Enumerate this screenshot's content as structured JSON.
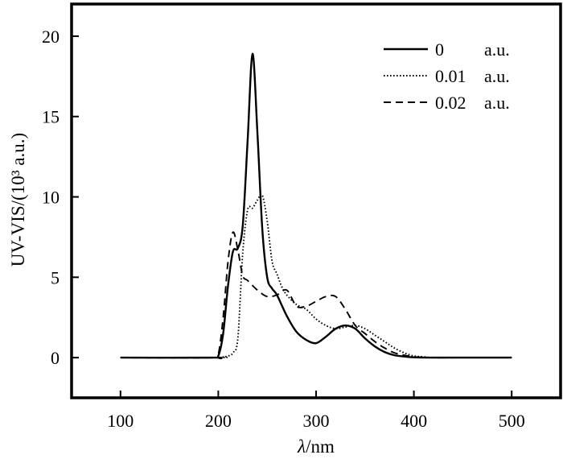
{
  "chart_data": {
    "type": "line",
    "xlabel": "λ/nm",
    "ylabel": "UV-VIS/(10³ a.u.)",
    "xlim": [
      50,
      550
    ],
    "ylim": [
      -2.5,
      22
    ],
    "xticks": [
      100,
      200,
      300,
      400,
      500
    ],
    "yticks": [
      0,
      5,
      10,
      15,
      20
    ],
    "grid": false,
    "legend_position": "top-right",
    "series": [
      {
        "name": "0",
        "unit": "a.u.",
        "style": "solid",
        "x": [
          100,
          195,
          200,
          205,
          210,
          215,
          220,
          225,
          230,
          235,
          240,
          245,
          250,
          255,
          260,
          270,
          280,
          290,
          300,
          310,
          320,
          330,
          340,
          350,
          360,
          370,
          380,
          390,
          400,
          420,
          450,
          500
        ],
        "y": [
          0,
          0,
          0.1,
          1.5,
          4.5,
          6.6,
          6.8,
          8.2,
          13.5,
          18.9,
          14.0,
          8.0,
          5.0,
          4.3,
          3.9,
          2.6,
          1.6,
          1.1,
          0.9,
          1.3,
          1.8,
          2.0,
          1.8,
          1.2,
          0.7,
          0.35,
          0.15,
          0.07,
          0.02,
          0,
          0,
          0
        ]
      },
      {
        "name": "0.01",
        "unit": "a.u.",
        "style": "dotted",
        "x": [
          100,
          200,
          205,
          210,
          215,
          220,
          225,
          230,
          235,
          240,
          245,
          250,
          255,
          260,
          265,
          270,
          280,
          290,
          300,
          310,
          320,
          330,
          340,
          350,
          360,
          370,
          380,
          390,
          400,
          410,
          420,
          450,
          500
        ],
        "y": [
          0,
          0,
          0.05,
          0.1,
          0.3,
          1.2,
          6.5,
          9.2,
          9.3,
          9.8,
          10.1,
          8.5,
          6.0,
          5.2,
          4.4,
          3.9,
          3.3,
          3.0,
          2.4,
          2.0,
          1.8,
          1.9,
          2.0,
          1.8,
          1.4,
          1.0,
          0.6,
          0.3,
          0.1,
          0.05,
          0,
          0,
          0
        ]
      },
      {
        "name": "0.02",
        "unit": "a.u.",
        "style": "dashed",
        "x": [
          100,
          195,
          200,
          205,
          210,
          215,
          220,
          225,
          230,
          240,
          250,
          260,
          270,
          280,
          290,
          300,
          310,
          320,
          330,
          340,
          350,
          360,
          370,
          380,
          390,
          400,
          420,
          450,
          500
        ],
        "y": [
          0,
          0,
          0.2,
          2.5,
          6.0,
          7.8,
          6.7,
          5.1,
          4.8,
          4.2,
          3.8,
          3.9,
          4.2,
          3.2,
          3.2,
          3.5,
          3.8,
          3.8,
          3.0,
          2.0,
          1.5,
          1.0,
          0.6,
          0.3,
          0.15,
          0.05,
          0,
          0,
          0
        ]
      }
    ]
  }
}
